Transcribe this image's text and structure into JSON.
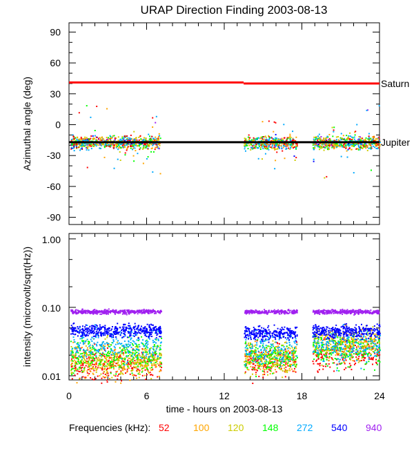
{
  "chart_data": [
    {
      "type": "scatter",
      "title": "URAP Direction Finding  2003-08-13",
      "xlabel": "",
      "ylabel": "Azimuthal angle (deg)",
      "xlim": [
        0,
        24
      ],
      "ylim": [
        -97,
        99
      ],
      "x_ticks": [
        "0",
        "6",
        "12",
        "18",
        "24"
      ],
      "y_ticks": [
        "90",
        "60",
        "30",
        "0",
        "-30",
        "-60",
        "-90"
      ],
      "reference_lines": [
        {
          "name": "Saturn",
          "color": "#ff0000",
          "segments": [
            [
              0,
              13.5,
              41
            ],
            [
              13.5,
              24,
              40
            ]
          ]
        },
        {
          "name": "Jupiter",
          "color": "#000000",
          "segments": [
            [
              0,
              24,
              -17
            ]
          ]
        }
      ],
      "data_segments_hours": [
        [
          0.1,
          7.1
        ],
        [
          13.5,
          17.6
        ],
        [
          18.8,
          24
        ]
      ],
      "scatter": {
        "center_deg": -17,
        "spread_deg": 6
      }
    },
    {
      "type": "scatter",
      "xlabel": "time - hours on 2003-08-13",
      "ylabel": "intensity (microvolt/sqrt(Hz))",
      "xlim": [
        0,
        24
      ],
      "ylim": [
        0.0087,
        1.2
      ],
      "yscale": "log",
      "x_ticks": [
        "0",
        "6",
        "12",
        "18",
        "24"
      ],
      "y_ticks": [
        "1.00",
        "0.10",
        "0.01"
      ],
      "data_segments_hours": [
        [
          0.1,
          7.1
        ],
        [
          13.5,
          17.6
        ],
        [
          18.8,
          24
        ]
      ],
      "series": [
        {
          "name": "52",
          "color": "#ff0000",
          "levels": [
            0.015,
            0.017,
            0.022
          ]
        },
        {
          "name": "100",
          "color": "#ffa500",
          "levels": [
            0.016,
            0.018,
            0.03
          ]
        },
        {
          "name": "120",
          "color": "#cccc00",
          "levels": [
            0.018,
            0.019,
            0.03
          ]
        },
        {
          "name": "148",
          "color": "#00ff00",
          "levels": [
            0.02,
            0.02,
            0.024
          ]
        },
        {
          "name": "272",
          "color": "#00aaff",
          "levels": [
            0.03,
            0.027,
            0.027
          ]
        },
        {
          "name": "540",
          "color": "#0000ff",
          "levels": [
            0.047,
            0.043,
            0.045
          ]
        },
        {
          "name": "940",
          "color": "#a020f0",
          "levels": [
            0.088,
            0.088,
            0.088
          ]
        }
      ]
    }
  ],
  "legend": {
    "label": "Frequencies (kHz):"
  }
}
